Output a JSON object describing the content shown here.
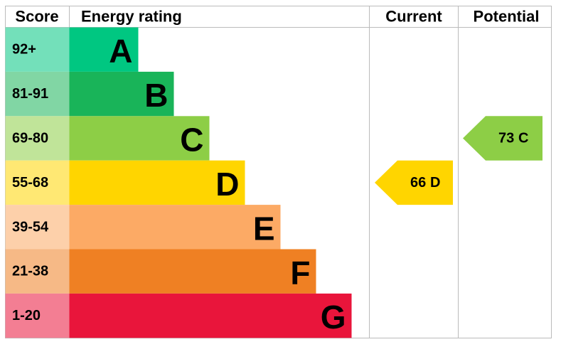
{
  "header": {
    "score": "Score",
    "rating": "Energy rating",
    "current": "Current",
    "potential": "Potential"
  },
  "bands": [
    {
      "score": "92+",
      "letter": "A",
      "color": "#00c781"
    },
    {
      "score": "81-91",
      "letter": "B",
      "color": "#19b459"
    },
    {
      "score": "69-80",
      "letter": "C",
      "color": "#8dce46"
    },
    {
      "score": "55-68",
      "letter": "D",
      "color": "#ffd500"
    },
    {
      "score": "39-54",
      "letter": "E",
      "color": "#fcaa65"
    },
    {
      "score": "21-38",
      "letter": "F",
      "color": "#ef8023"
    },
    {
      "score": "1-20",
      "letter": "G",
      "color": "#e9153b"
    }
  ],
  "current": {
    "value": 66,
    "letter": "D"
  },
  "potential": {
    "value": 73,
    "letter": "C"
  }
}
